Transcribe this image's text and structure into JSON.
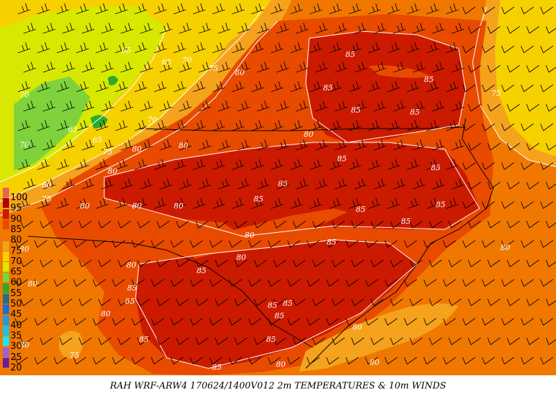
{
  "caption": "RAH WRF-ARW4 170624/1400V012  2m TEMPERATURES & 10m WINDS",
  "legend": {
    "levels": [
      {
        "label": "100",
        "color": "#e86060"
      },
      {
        "label": "95",
        "color": "#b00000"
      },
      {
        "label": "90",
        "color": "#cc1a00"
      },
      {
        "label": "85",
        "color": "#e84a00"
      },
      {
        "label": "80",
        "color": "#f07800"
      },
      {
        "label": "75",
        "color": "#f5a21c"
      },
      {
        "label": "70",
        "color": "#f7d000"
      },
      {
        "label": "65",
        "color": "#d8e800"
      },
      {
        "label": "60",
        "color": "#7fd23c"
      },
      {
        "label": "55",
        "color": "#2ea82e"
      },
      {
        "label": "50",
        "color": "#1f6f8f"
      },
      {
        "label": "45",
        "color": "#1e6bd6"
      },
      {
        "label": "40",
        "color": "#1e9ae6"
      },
      {
        "label": "35",
        "color": "#19c4ee"
      },
      {
        "label": "30",
        "color": "#19e6f0"
      },
      {
        "label": "25",
        "color": "#9a62d6"
      },
      {
        "label": "20",
        "color": "#6a1aa8"
      }
    ]
  },
  "contour_labels": [
    {
      "text": "85",
      "region": "northeast"
    },
    {
      "text": "85",
      "region": "central"
    },
    {
      "text": "85",
      "region": "southeast"
    },
    {
      "text": "80",
      "region": "piedmont"
    },
    {
      "text": "80",
      "region": "south"
    },
    {
      "text": "75",
      "region": "foothills"
    },
    {
      "text": "75",
      "region": "outer-banks"
    },
    {
      "text": "70",
      "region": "mountains"
    },
    {
      "text": "65",
      "region": "mountains"
    },
    {
      "text": "60",
      "region": "mountains"
    }
  ]
}
